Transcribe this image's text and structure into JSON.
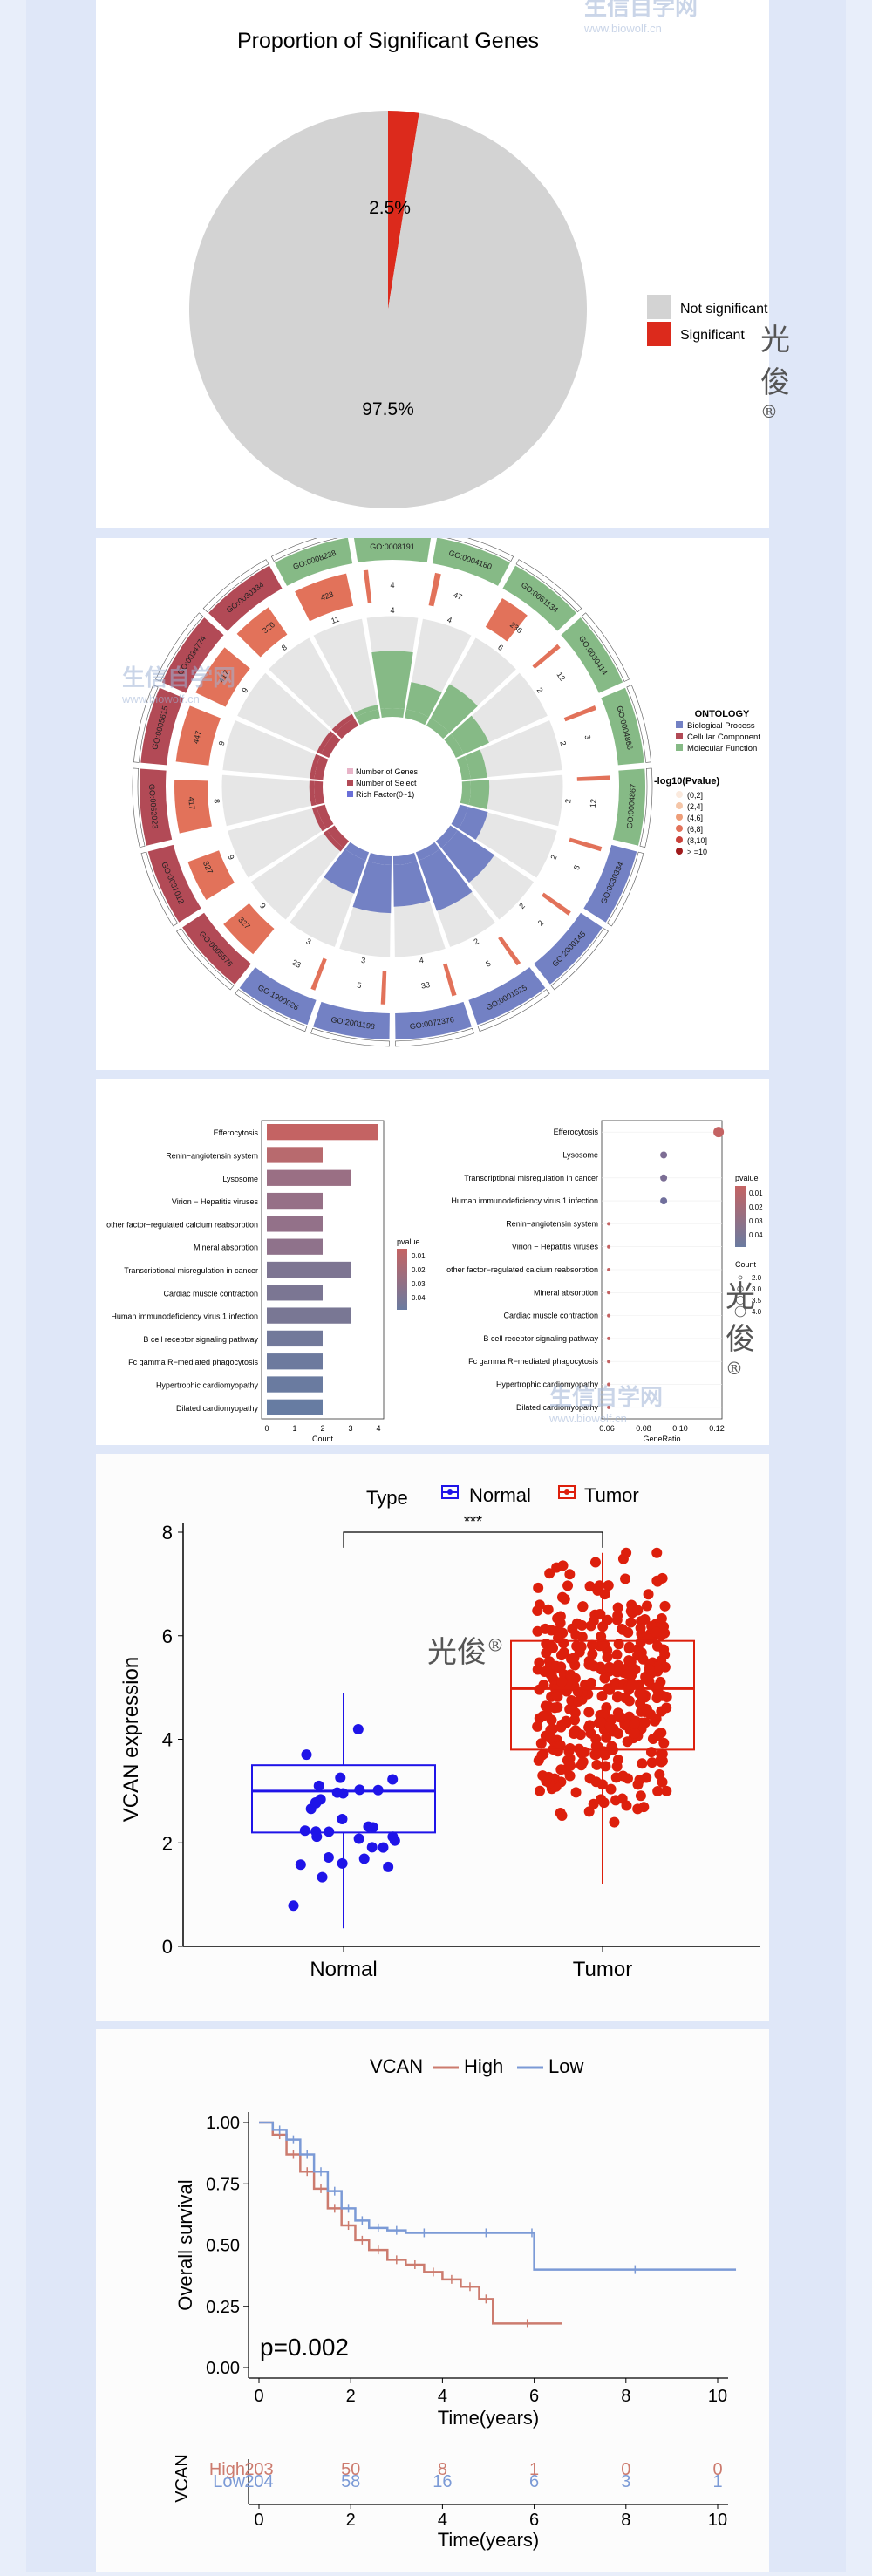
{
  "pie": {
    "title": "Proportion of Significant Genes",
    "legend": [
      "Not significant",
      "Significant"
    ],
    "colors": [
      "#d3d3d3",
      "#dc2a1c"
    ],
    "chart_data": {
      "type": "pie",
      "title": "Proportion of Significant Genes",
      "categories": [
        "Not significant",
        "Significant"
      ],
      "values": [
        97.5,
        2.5
      ],
      "labels": [
        "97.5%",
        "2.5%"
      ]
    }
  },
  "circos": {
    "legend_title": "ONTOLOGY",
    "legend_items": [
      "Biological Process",
      "Cellular Component",
      "Molecular Function"
    ],
    "legend_colors": [
      "#7381c4",
      "#b24a56",
      "#86ba86"
    ],
    "pval_title": "-log10(Pvalue)",
    "pval_items": [
      "(0,2]",
      "(2,4]",
      "(4,6]",
      "(6,8]",
      "(8,10]",
      "> =10"
    ],
    "pval_colors": [
      "#fbeade",
      "#f5c6a8",
      "#ee9e79",
      "#e2725a",
      "#c9413a",
      "#a01a1c"
    ],
    "center_legend": [
      "Number of Genes",
      "Number of Select",
      "Rich Factor(0~1)"
    ],
    "center_colors": [
      "#e8b4c8",
      "#b24a56",
      "#6a6fd8"
    ],
    "chart_data": {
      "type": "circular-bar",
      "terms": [
        {
          "id": "GO:0008191",
          "group": "Molecular Function",
          "genes": "4",
          "select": "4",
          "rich": 0.62
        },
        {
          "id": "GO:0004180",
          "group": "Molecular Function",
          "genes": "47",
          "select": "4",
          "rich": 0.3
        },
        {
          "id": "GO:0061134",
          "group": "Molecular Function",
          "genes": "236",
          "select": "6",
          "rich": 0.42
        },
        {
          "id": "GO:0030414",
          "group": "Molecular Function",
          "genes": "12",
          "select": "2",
          "rich": 0.3
        },
        {
          "id": "GO:0004866",
          "group": "Molecular Function",
          "genes": "3",
          "select": "2",
          "rich": 0.18
        },
        {
          "id": "GO:0004867",
          "group": "Molecular Function",
          "genes": "12",
          "select": "2",
          "rich": 0.2
        },
        {
          "id": "GO:0030334",
          "group": "Biological Process",
          "genes": "5",
          "select": "2",
          "rich": 0.22
        },
        {
          "id": "GO:2000145",
          "group": "Biological Process",
          "genes": "2",
          "select": "2",
          "rich": 0.48
        },
        {
          "id": "GO:0001525",
          "group": "Biological Process",
          "genes": "5",
          "select": "2",
          "rich": 0.58
        },
        {
          "id": "GO:0072376",
          "group": "Biological Process",
          "genes": "33",
          "select": "4",
          "rich": 0.45
        },
        {
          "id": "GO:2001198",
          "group": "Biological Process",
          "genes": "5",
          "select": "3",
          "rich": 0.52
        },
        {
          "id": "GO:1900026",
          "group": "Biological Process",
          "genes": "23",
          "select": "3",
          "rich": 0.38
        },
        {
          "id": "GO:0005576",
          "group": "Cellular Component",
          "genes": "327",
          "select": "9",
          "rich": 0.05
        },
        {
          "id": "GO:0031012",
          "group": "Cellular Component",
          "genes": "327",
          "select": "9",
          "rich": 0.05
        },
        {
          "id": "GO:0062023",
          "group": "Cellular Component",
          "genes": "417",
          "select": "8",
          "rich": 0.05
        },
        {
          "id": "GO:0005615",
          "group": "Cellular Component",
          "genes": "447",
          "select": "9",
          "rich": 0.05
        },
        {
          "id": "GO:0034774",
          "group": "Cellular Component",
          "genes": "417",
          "select": "9",
          "rich": 0.05
        },
        {
          "id": "GO:0030334",
          "group": "Cellular Component",
          "genes": "320",
          "select": "8",
          "rich": 0.05
        },
        {
          "id": "GO:0008238",
          "group": "Molecular Function",
          "genes": "423",
          "select": "11",
          "rich": 0.05
        }
      ]
    }
  },
  "kegg": {
    "bar": {
      "chart_data": {
        "type": "bar",
        "orientation": "horizontal",
        "xlabel": "Count",
        "xlim": [
          0,
          4
        ],
        "ticks": [
          "0",
          "1",
          "2",
          "3",
          "4"
        ],
        "categories": [
          "Efferocytosis",
          "Renin−angiotensin system",
          "Lysosome",
          "Virion − Hepatitis viruses",
          "other factor−regulated calcium reabsorption",
          "Mineral absorption",
          "Transcriptional misregulation in cancer",
          "Cardiac muscle contraction",
          "Human immunodeficiency virus 1 infection",
          "B cell receptor signaling pathway",
          "Fc gamma R−mediated phagocytosis",
          "Hypertrophic cardiomyopathy",
          "Dilated cardiomyopathy"
        ],
        "values": [
          4,
          2,
          3,
          2,
          2,
          2,
          3,
          2,
          3,
          2,
          2,
          2,
          2
        ],
        "colors": [
          "#c46363",
          "#b86a6e",
          "#9a6f84",
          "#967087",
          "#937189",
          "#8f728b",
          "#7d7592",
          "#7b7693",
          "#797794",
          "#72799a",
          "#6d7a9e",
          "#6a7ba0",
          "#677ca2"
        ]
      },
      "legend_title": "pvalue",
      "legend_ticks": [
        "0.01",
        "0.02",
        "0.03",
        "0.04"
      ]
    },
    "dot": {
      "chart_data": {
        "type": "scatter",
        "xlabel": "GeneRatio",
        "xlim": [
          0.06,
          0.12
        ],
        "ticks": [
          "0.06",
          "0.08",
          "0.10",
          "0.12"
        ],
        "categories": [
          "Efferocytosis",
          "Lysosome",
          "Transcriptional misregulation in cancer",
          "Human immunodeficiency virus 1 infection",
          "Renin−angiotensin system",
          "Virion − Hepatitis viruses",
          "other factor−regulated calcium reabsorption",
          "Mineral absorption",
          "Cardiac muscle contraction",
          "B cell receptor signaling pathway",
          "Fc gamma R−mediated phagocytosis",
          "Hypertrophic cardiomyopathy",
          "Dilated cardiomyopathy"
        ],
        "x": [
          0.121,
          0.091,
          0.091,
          0.091,
          0.061,
          0.061,
          0.061,
          0.061,
          0.061,
          0.061,
          0.061,
          0.061,
          0.061
        ],
        "counts": [
          4,
          3,
          3,
          3,
          2,
          2,
          2,
          2,
          2,
          2,
          2,
          2,
          2
        ]
      },
      "legend_title": "pvalue",
      "legend_ticks": [
        "0.01",
        "0.02",
        "0.03",
        "0.04"
      ],
      "count_title": "Count",
      "count_items": [
        "2.0",
        "3.0",
        "3.5",
        "4.0"
      ]
    }
  },
  "boxplot": {
    "legend_title": "Type",
    "legend_items": [
      "Normal",
      "Tumor"
    ],
    "colors": [
      "#1f14e8",
      "#dd1f0c"
    ],
    "significance": "***",
    "chart_data": {
      "type": "box",
      "ylabel": "VCAN expression",
      "ylim": [
        0,
        8
      ],
      "yticks": [
        "0",
        "2",
        "4",
        "6",
        "8"
      ],
      "categories": [
        "Normal",
        "Tumor"
      ],
      "series": [
        {
          "name": "Normal",
          "min": 0.35,
          "q1": 2.2,
          "median": 3.0,
          "q3": 3.5,
          "max": 4.9,
          "n": 32
        },
        {
          "name": "Tumor",
          "min": 1.2,
          "q1": 3.8,
          "median": 4.98,
          "q3": 5.9,
          "max": 7.6,
          "n": 370
        }
      ]
    }
  },
  "km": {
    "legend_title": "VCAN",
    "legend_items": [
      "High",
      "Low"
    ],
    "colors": [
      "#cc7b6e",
      "#7b9ad6"
    ],
    "pvalue": "p=0.002",
    "chart_data": {
      "type": "line",
      "title": "",
      "xlabel": "Time(years)",
      "ylabel": "Overall survival",
      "xlim": [
        0,
        10.5
      ],
      "ylim": [
        0,
        1
      ],
      "xticks": [
        "0",
        "2",
        "4",
        "6",
        "8",
        "10"
      ],
      "yticks": [
        "0.00",
        "0.25",
        "0.50",
        "0.75",
        "1.00"
      ],
      "series": [
        {
          "name": "High",
          "x": [
            0,
            0.3,
            0.6,
            0.9,
            1.2,
            1.5,
            1.8,
            2.1,
            2.4,
            2.8,
            3.2,
            3.6,
            4.0,
            4.4,
            4.8,
            5.1,
            6.6
          ],
          "y": [
            1.0,
            0.95,
            0.87,
            0.8,
            0.73,
            0.65,
            0.58,
            0.52,
            0.48,
            0.44,
            0.42,
            0.39,
            0.36,
            0.33,
            0.28,
            0.18,
            0.18
          ]
        },
        {
          "name": "Low",
          "x": [
            0,
            0.3,
            0.6,
            0.9,
            1.2,
            1.5,
            1.8,
            2.1,
            2.4,
            2.8,
            3.2,
            4.0,
            5.9,
            6.0,
            10.4
          ],
          "y": [
            1.0,
            0.97,
            0.93,
            0.87,
            0.8,
            0.72,
            0.65,
            0.6,
            0.57,
            0.56,
            0.55,
            0.55,
            0.55,
            0.4,
            0.4
          ]
        }
      ]
    }
  },
  "risk_table": {
    "ylabel": "VCAN",
    "xlabel": "Time(years)",
    "times": [
      "0",
      "2",
      "4",
      "6",
      "8",
      "10"
    ],
    "rows": [
      {
        "name": "High",
        "values": [
          "203",
          "50",
          "8",
          "1",
          "0",
          "0"
        ]
      },
      {
        "name": "Low",
        "values": [
          "204",
          "58",
          "16",
          "6",
          "3",
          "1"
        ]
      }
    ]
  },
  "watermarks": {
    "brand": "光俊",
    "reg": "®",
    "site": "生信自学网",
    "url": "www.biowolf.cn"
  }
}
